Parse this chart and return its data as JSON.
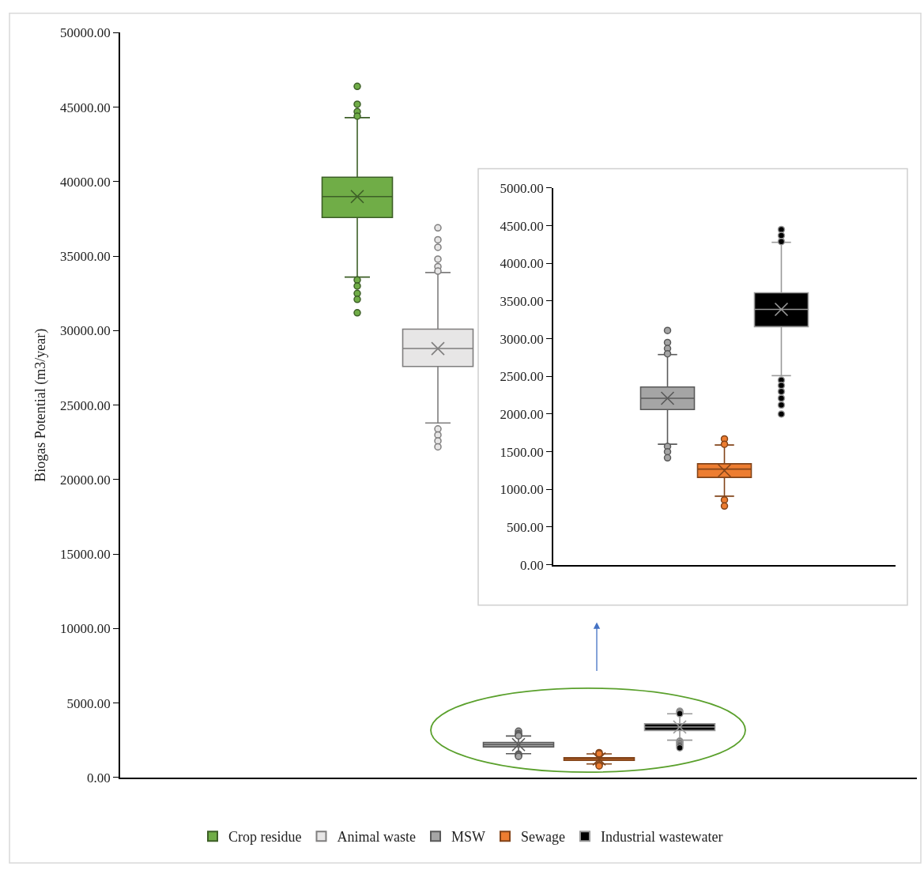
{
  "chart_data": [
    {
      "type": "box",
      "ylabel": "Biogas Potential (m3/year)",
      "categories": [
        null
      ],
      "ylim": [
        0,
        50000
      ],
      "yticks": [
        {
          "value": 0,
          "label": "0.00"
        },
        {
          "value": 5000,
          "label": "5000.00"
        },
        {
          "value": 10000,
          "label": "10000.00"
        },
        {
          "value": 15000,
          "label": "15000.00"
        },
        {
          "value": 20000,
          "label": "20000.00"
        },
        {
          "value": 25000,
          "label": "25000.00"
        },
        {
          "value": 30000,
          "label": "30000.00"
        },
        {
          "value": 35000,
          "label": "35000.00"
        },
        {
          "value": 40000,
          "label": "40000.00"
        },
        {
          "value": 45000,
          "label": "45000.00"
        },
        {
          "value": 50000,
          "label": "50000.00"
        }
      ],
      "tick_labels": "y",
      "grid": false,
      "legend": "bottom",
      "series": [
        {
          "name": "Crop residue",
          "color": "#70ad47",
          "boxes": [
            {
              "low": 33600,
              "q1": 37600,
              "median": 39000,
              "q3": 40300,
              "high": 44300,
              "mean": 39000,
              "outliers": [
                46400,
                45200,
                44700,
                44400,
                33400,
                33000,
                32500,
                32100,
                31200
              ]
            }
          ]
        },
        {
          "name": "Animal waste",
          "color": "#e7e6e6",
          "boxes": [
            {
              "low": 23800,
              "q1": 27600,
              "median": 28800,
              "q3": 30100,
              "high": 33900,
              "mean": 28800,
              "outliers": [
                36900,
                36100,
                35600,
                34800,
                34300,
                34000,
                23400,
                23000,
                22600,
                22200
              ]
            }
          ]
        },
        {
          "name": "MSW",
          "color": "#a5a5a5",
          "boxes": [
            {
              "low": 1600,
              "q1": 2060,
              "median": 2210,
              "q3": 2360,
              "high": 2790,
              "mean": 2210,
              "outliers": [
                3110,
                2950,
                2870,
                2800,
                1570,
                1500,
                1420
              ]
            }
          ]
        },
        {
          "name": "Sewage",
          "color": "#ed7d31",
          "boxes": [
            {
              "low": 910,
              "q1": 1160,
              "median": 1270,
              "q3": 1340,
              "high": 1590,
              "mean": 1250,
              "outliers": [
                1670,
                1600,
                860,
                780
              ]
            }
          ]
        },
        {
          "name": "Industrial wastewater",
          "color": "#000000",
          "boxes": [
            {
              "low": 2510,
              "q1": 3160,
              "median": 3390,
              "q3": 3610,
              "high": 4280,
              "mean": 3390,
              "outliers": [
                4450,
                4370,
                4290,
                2450,
                2380,
                2300,
                2210,
                2120,
                2000
              ]
            }
          ]
        }
      ]
    },
    {
      "type": "box",
      "categories": [
        null
      ],
      "ylim": [
        0,
        5000
      ],
      "yticks": [
        {
          "value": 0,
          "label": "0.00"
        },
        {
          "value": 500,
          "label": "500.00"
        },
        {
          "value": 1000,
          "label": "1000.00"
        },
        {
          "value": 1500,
          "label": "1500.00"
        },
        {
          "value": 2000,
          "label": "2000.00"
        },
        {
          "value": 2500,
          "label": "2500.00"
        },
        {
          "value": 3000,
          "label": "3000.00"
        },
        {
          "value": 3500,
          "label": "3500.00"
        },
        {
          "value": 4000,
          "label": "4000.00"
        },
        {
          "value": 4500,
          "label": "4500.00"
        },
        {
          "value": 5000,
          "label": "5000.00"
        }
      ],
      "tick_labels": "y",
      "grid": false,
      "series": [
        {
          "color": "#a5a5a5",
          "boxes": [
            {
              "low": 1600,
              "q1": 2060,
              "median": 2210,
              "q3": 2360,
              "high": 2790,
              "mean": 2210,
              "outliers": [
                3110,
                2950,
                2870,
                2800,
                1570,
                1500,
                1420
              ]
            }
          ]
        },
        {
          "color": "#ed7d31",
          "boxes": [
            {
              "low": 910,
              "q1": 1160,
              "median": 1270,
              "q3": 1340,
              "high": 1590,
              "mean": 1250,
              "outliers": [
                1670,
                1600,
                860,
                780
              ]
            }
          ]
        },
        {
          "color": "#000000",
          "boxes": [
            {
              "low": 2510,
              "q1": 3160,
              "median": 3390,
              "q3": 3610,
              "high": 4280,
              "mean": 3390,
              "outliers": [
                4450,
                4370,
                4290,
                2450,
                2380,
                2300,
                2210,
                2120,
                2000
              ]
            }
          ]
        }
      ]
    }
  ]
}
